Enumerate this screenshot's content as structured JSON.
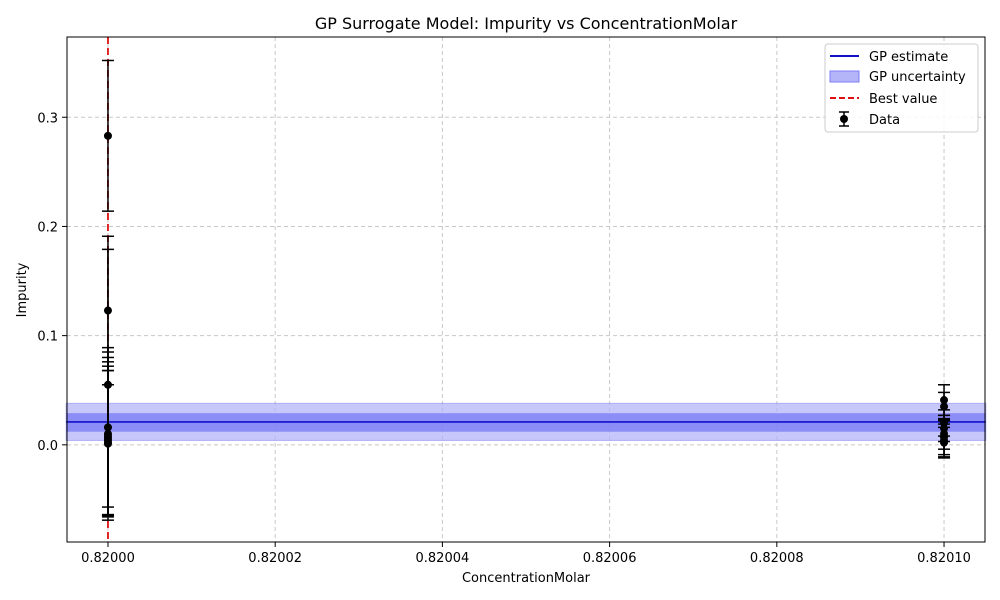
{
  "chart_data": {
    "type": "scatter",
    "title": "GP Surrogate Model: Impurity vs ConcentrationMolar",
    "xlabel": "ConcentrationMolar",
    "ylabel": "Impurity",
    "xlim": [
      0.819991,
      0.821044
    ],
    "ylim": [
      -0.089,
      0.3735
    ],
    "x_ticks": [
      0.82,
      0.82002,
      0.82004,
      0.82006,
      0.82008,
      0.8201
    ],
    "x_tick_labels": [
      "0.82000",
      "0.82002",
      "0.82004",
      "0.82006",
      "0.82008",
      "0.82010"
    ],
    "y_ticks": [
      0.0,
      0.1,
      0.2,
      0.3
    ],
    "y_tick_labels": [
      "0.0",
      "0.1",
      "0.2",
      "0.3"
    ],
    "grid": true,
    "legend_position": "top-right",
    "gp_estimate": {
      "x": [
        0.819995,
        0.820105
      ],
      "y": [
        0.021,
        0.021
      ]
    },
    "gp_uncertainty_outer": {
      "lower": 0.004,
      "upper": 0.038
    },
    "gp_uncertainty_inner": {
      "lower": 0.012,
      "upper": 0.029
    },
    "best_value_x": 0.82,
    "data": {
      "x": [
        0.82,
        0.82,
        0.82,
        0.82,
        0.82,
        0.82,
        0.82,
        0.82,
        0.82,
        0.82,
        0.8201,
        0.8201,
        0.8201,
        0.8201,
        0.8201,
        0.8201,
        0.8201,
        0.8201
      ],
      "y": [
        0.283,
        0.123,
        0.055,
        0.016,
        0.01,
        0.008,
        0.006,
        0.004,
        0.002,
        0.001,
        0.041,
        0.035,
        0.02,
        0.015,
        0.01,
        0.007,
        0.004,
        0.002
      ],
      "yerr": [
        0.069,
        0.068,
        0.124,
        0.073,
        0.075,
        0.072,
        0.07,
        0.068,
        0.066,
        0.067,
        0.014,
        0.013,
        0.012,
        0.012,
        0.014,
        0.016,
        0.015,
        0.014
      ]
    },
    "legend": [
      {
        "label": "GP estimate",
        "kind": "line"
      },
      {
        "label": "GP uncertainty",
        "kind": "patch"
      },
      {
        "label": "Best value",
        "kind": "dashed"
      },
      {
        "label": "Data",
        "kind": "errorbar"
      }
    ],
    "colors": {
      "gp_line": "#1010c8",
      "band_outer": "#b4b4f8",
      "band_inner": "#7e7ef6",
      "best_value": "#e01010",
      "data": "#000000",
      "grid": "#c8c8c8"
    }
  }
}
